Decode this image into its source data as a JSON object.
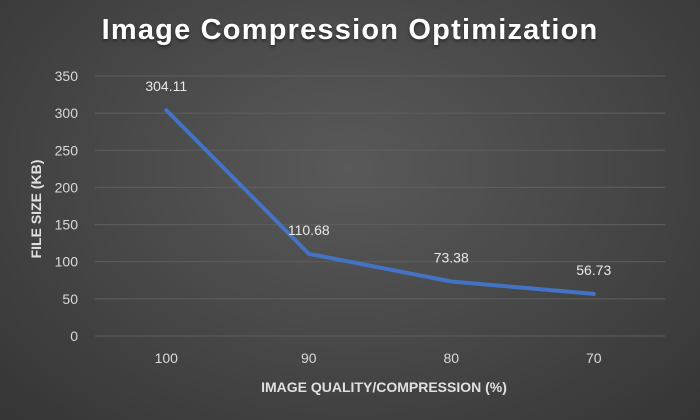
{
  "chart_data": {
    "type": "line",
    "title": "Image Compression Optimization",
    "xlabel": "IMAGE QUALITY/COMPRESSION (%)",
    "ylabel": "FILE SIZE (KB)",
    "categories": [
      "100",
      "90",
      "80",
      "70"
    ],
    "series": [
      {
        "values": [
          304.11,
          110.68,
          73.38,
          56.73
        ]
      }
    ],
    "data_labels": [
      "304.11",
      "110.68",
      "73.38",
      "56.73"
    ],
    "ylim": [
      0,
      350
    ],
    "yticks": [
      "0",
      "50",
      "100",
      "150",
      "200",
      "250",
      "300",
      "350"
    ],
    "grid": true,
    "line_color": "#4472C4",
    "grid_color": "#5f5f5f"
  }
}
